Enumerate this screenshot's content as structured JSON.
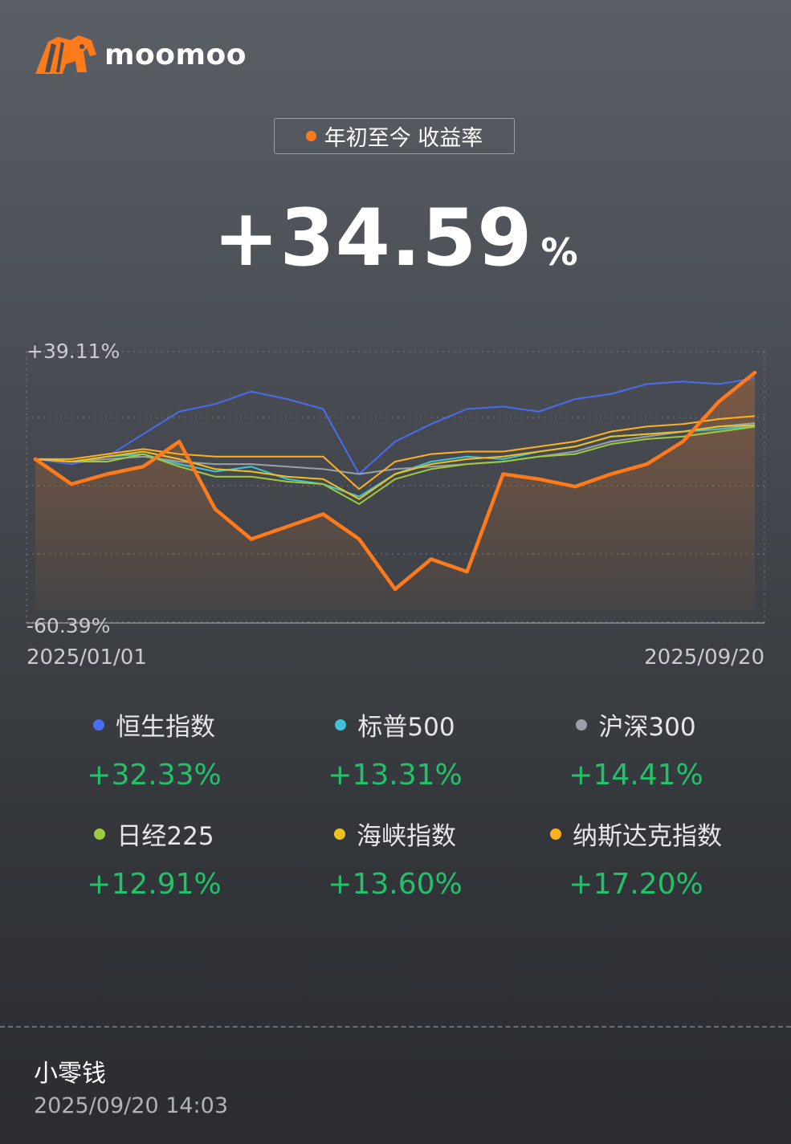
{
  "brand": {
    "name": "moomoo",
    "logo_icon": "bull-logo-icon",
    "color": "#ff7a1a"
  },
  "header": {
    "badge_label": "年初至今 收益率",
    "badge_dot_color": "#ff7a1a"
  },
  "summary": {
    "return_value": "+34.59",
    "return_unit": "%"
  },
  "chart_data": {
    "type": "line",
    "ylim": [
      -60.39,
      39.11
    ],
    "y_top_label": "+39.11%",
    "y_bottom_label": "-60.39%",
    "x_start_label": "2025/01/01",
    "x_end_label": "2025/09/20",
    "x_count": 21,
    "portfolio": {
      "color": "#ff7a1a",
      "values": [
        0,
        -10,
        -6,
        -3,
        7,
        -20,
        -32,
        -27,
        -22,
        -32,
        -52,
        -40,
        -45,
        -6,
        -8,
        -11,
        -6,
        -2,
        7,
        23,
        34.59
      ]
    },
    "series": [
      {
        "name": "恒生指数",
        "color": "#4a6cf0",
        "values": [
          0,
          -2,
          1,
          10,
          19,
          22,
          27,
          24,
          20,
          -6,
          7,
          14,
          20,
          21,
          19,
          24,
          26,
          30,
          31,
          30,
          32.33
        ]
      },
      {
        "name": "标普500",
        "color": "#3cc4d9",
        "values": [
          0,
          -1,
          1,
          2,
          -2,
          -5,
          -3,
          -8,
          -10,
          -15,
          -6,
          -1,
          1,
          0,
          3,
          5,
          9,
          10,
          11,
          12,
          13.31
        ]
      },
      {
        "name": "沪深300",
        "color": "#9aa0aa",
        "values": [
          0,
          -1,
          0,
          1,
          -1,
          -2,
          -2,
          -3,
          -4,
          -6,
          -4,
          -3,
          -2,
          -1,
          1,
          3,
          7,
          9,
          11,
          13,
          14.41
        ]
      },
      {
        "name": "日经225",
        "color": "#9ccc3c",
        "values": [
          0,
          -1,
          -1,
          2,
          -3,
          -7,
          -7,
          -9,
          -10,
          -18,
          -8,
          -4,
          -2,
          -1,
          1,
          2,
          6,
          8,
          9,
          11,
          12.91
        ]
      },
      {
        "name": "海峡指数",
        "color": "#f0c020",
        "values": [
          0,
          -1,
          1,
          3,
          0,
          -4,
          -5,
          -7,
          -8,
          -16,
          -6,
          -2,
          0,
          1,
          3,
          5,
          9,
          10,
          11,
          13,
          13.6
        ]
      },
      {
        "name": "纳斯达克指数",
        "color": "#ffb020",
        "values": [
          0,
          0,
          2,
          4,
          2,
          1,
          1,
          1,
          1,
          -12,
          -1,
          2,
          3,
          3,
          5,
          7,
          11,
          13,
          14,
          16,
          17.2
        ]
      }
    ]
  },
  "legend_items": [
    {
      "name": "恒生指数",
      "value": "+32.33%",
      "color": "#4a6cf0"
    },
    {
      "name": "标普500",
      "value": "+13.31%",
      "color": "#3cc4d9"
    },
    {
      "name": "沪深300",
      "value": "+14.41%",
      "color": "#9aa0aa"
    },
    {
      "name": "日经225",
      "value": "+12.91%",
      "color": "#9ccc3c"
    },
    {
      "name": "海峡指数",
      "value": "+13.60%",
      "color": "#f0c020"
    },
    {
      "name": "纳斯达克指数",
      "value": "+17.20%",
      "color": "#ffb020"
    }
  ],
  "footer": {
    "account_name": "小零钱",
    "timestamp": "2025/09/20 14:03"
  }
}
